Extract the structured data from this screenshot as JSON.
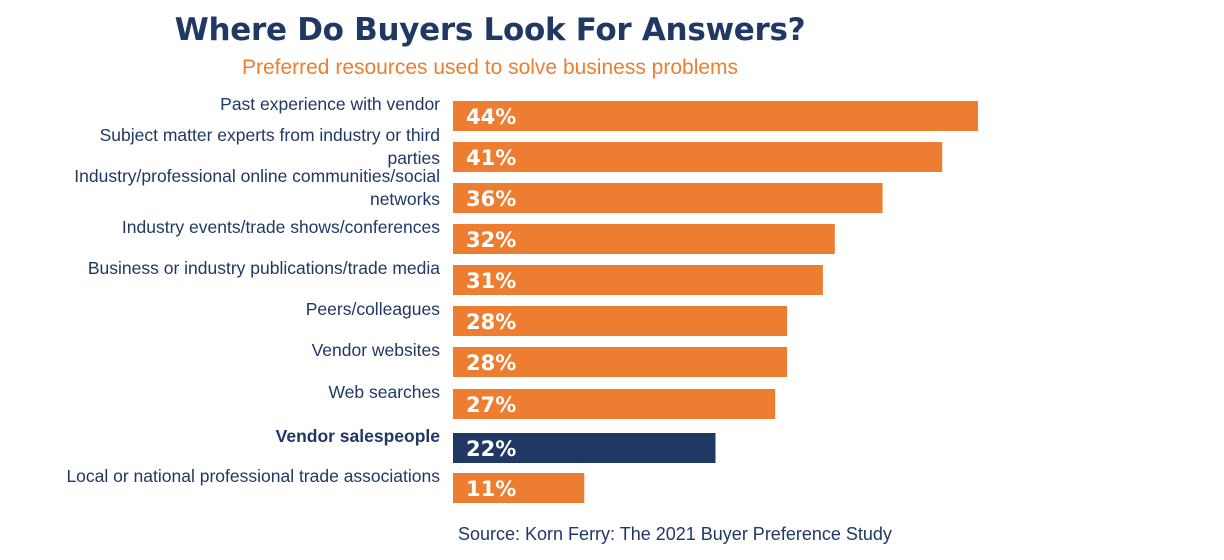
{
  "chart_data": {
    "type": "bar",
    "orientation": "horizontal",
    "title": "Where Do Buyers Look For Answers?",
    "subtitle": "Preferred resources used to solve business problems",
    "categories": [
      "Past experience with vendor",
      "Subject matter experts from industry or third parties",
      "Industry/professional online communities/social networks",
      "Industry events/trade shows/conferences",
      "Business or industry publications/trade media",
      "Peers/colleagues",
      "Vendor websites",
      "Web searches",
      "Vendor salespeople",
      "Local or national professional trade associations"
    ],
    "category_lines": [
      [
        "Past experience with vendor"
      ],
      [
        "Subject matter experts from industry or third",
        "parties"
      ],
      [
        "Industry/professional online communities/social",
        "networks"
      ],
      [
        "Industry events/trade shows/conferences"
      ],
      [
        "Business or industry publications/trade media"
      ],
      [
        "Peers/colleagues"
      ],
      [
        "Vendor websites"
      ],
      [
        "Web searches"
      ],
      [
        "Vendor salespeople"
      ],
      [
        "Local or national professional trade associations"
      ]
    ],
    "values": [
      44,
      41,
      36,
      32,
      31,
      28,
      28,
      27,
      22,
      11
    ],
    "data_labels": [
      "44%",
      "41%",
      "36%",
      "32%",
      "31%",
      "28%",
      "28%",
      "27%",
      "22%",
      "11%"
    ],
    "highlight": [
      8
    ],
    "colors": {
      "default": "#ed7d31",
      "highlight": "#1f3864",
      "label": "#1f3864",
      "title": "#1f3864",
      "subtitle": "#ed7d31",
      "bar_text": "#ffffff"
    },
    "value_unit": "%",
    "xlim": [
      0,
      44
    ],
    "grid": false,
    "legend": "none"
  },
  "source": "Source: Korn Ferry: The 2021 Buyer Preference Study"
}
